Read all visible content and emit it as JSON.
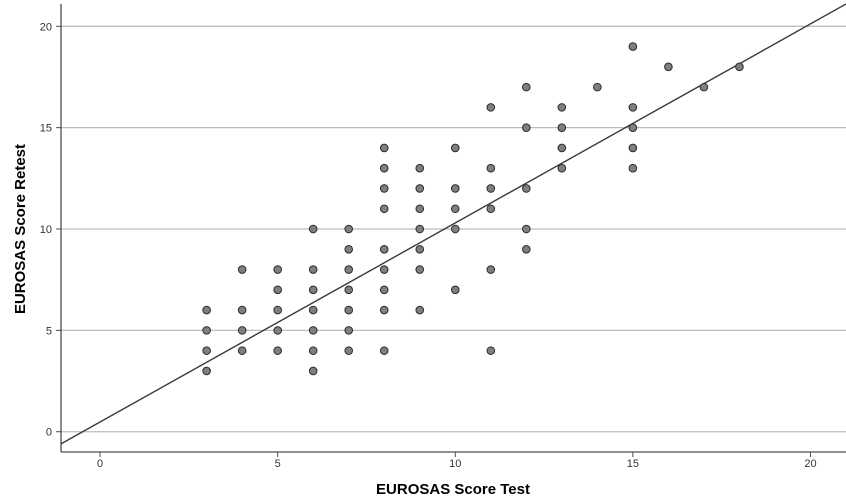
{
  "chart_data": {
    "type": "scatter",
    "xlabel": "EUROSAS Score Test",
    "ylabel": "EUROSAS Score Retest",
    "xlim": [
      -1.1,
      21
    ],
    "ylim": [
      -1.0,
      21.1
    ],
    "xticks": [
      0,
      5,
      10,
      15,
      20
    ],
    "yticks": [
      0,
      5,
      10,
      15,
      20
    ],
    "grid": "horizontal",
    "colors": {
      "point_fill": "#7f7f7f",
      "point_stroke": "#2b2b2b",
      "line": "#3a3a3a",
      "grid": "#bdbdbd",
      "axis": "#4d4d4d"
    },
    "points": [
      {
        "x": 3,
        "y": 3
      },
      {
        "x": 3,
        "y": 4
      },
      {
        "x": 3,
        "y": 5
      },
      {
        "x": 3,
        "y": 6
      },
      {
        "x": 4,
        "y": 4
      },
      {
        "x": 4,
        "y": 5
      },
      {
        "x": 4,
        "y": 6
      },
      {
        "x": 4,
        "y": 8
      },
      {
        "x": 5,
        "y": 4
      },
      {
        "x": 5,
        "y": 5
      },
      {
        "x": 5,
        "y": 6
      },
      {
        "x": 5,
        "y": 7
      },
      {
        "x": 5,
        "y": 8
      },
      {
        "x": 6,
        "y": 3
      },
      {
        "x": 6,
        "y": 4
      },
      {
        "x": 6,
        "y": 5
      },
      {
        "x": 6,
        "y": 6
      },
      {
        "x": 6,
        "y": 7
      },
      {
        "x": 6,
        "y": 8
      },
      {
        "x": 6,
        "y": 10
      },
      {
        "x": 7,
        "y": 4
      },
      {
        "x": 7,
        "y": 5
      },
      {
        "x": 7,
        "y": 6
      },
      {
        "x": 7,
        "y": 7
      },
      {
        "x": 7,
        "y": 8
      },
      {
        "x": 7,
        "y": 9
      },
      {
        "x": 7,
        "y": 10
      },
      {
        "x": 8,
        "y": 4
      },
      {
        "x": 8,
        "y": 6
      },
      {
        "x": 8,
        "y": 7
      },
      {
        "x": 8,
        "y": 8
      },
      {
        "x": 8,
        "y": 9
      },
      {
        "x": 8,
        "y": 11
      },
      {
        "x": 8,
        "y": 12
      },
      {
        "x": 8,
        "y": 13
      },
      {
        "x": 8,
        "y": 14
      },
      {
        "x": 9,
        "y": 6
      },
      {
        "x": 9,
        "y": 8
      },
      {
        "x": 9,
        "y": 9
      },
      {
        "x": 9,
        "y": 10
      },
      {
        "x": 9,
        "y": 11
      },
      {
        "x": 9,
        "y": 12
      },
      {
        "x": 9,
        "y": 13
      },
      {
        "x": 10,
        "y": 7
      },
      {
        "x": 10,
        "y": 10
      },
      {
        "x": 10,
        "y": 11
      },
      {
        "x": 10,
        "y": 12
      },
      {
        "x": 10,
        "y": 14
      },
      {
        "x": 11,
        "y": 4
      },
      {
        "x": 11,
        "y": 8
      },
      {
        "x": 11,
        "y": 11
      },
      {
        "x": 11,
        "y": 12
      },
      {
        "x": 11,
        "y": 13
      },
      {
        "x": 11,
        "y": 16
      },
      {
        "x": 12,
        "y": 9
      },
      {
        "x": 12,
        "y": 10
      },
      {
        "x": 12,
        "y": 12
      },
      {
        "x": 12,
        "y": 15
      },
      {
        "x": 12,
        "y": 17
      },
      {
        "x": 13,
        "y": 13
      },
      {
        "x": 13,
        "y": 14
      },
      {
        "x": 13,
        "y": 15
      },
      {
        "x": 13,
        "y": 16
      },
      {
        "x": 14,
        "y": 17
      },
      {
        "x": 15,
        "y": 13
      },
      {
        "x": 15,
        "y": 14
      },
      {
        "x": 15,
        "y": 15
      },
      {
        "x": 15,
        "y": 16
      },
      {
        "x": 15,
        "y": 19
      },
      {
        "x": 16,
        "y": 18
      },
      {
        "x": 17,
        "y": 17
      },
      {
        "x": 18,
        "y": 18
      }
    ],
    "reference_line": {
      "from": [
        -1.1,
        -0.6
      ],
      "to": [
        21,
        21.1
      ]
    }
  }
}
